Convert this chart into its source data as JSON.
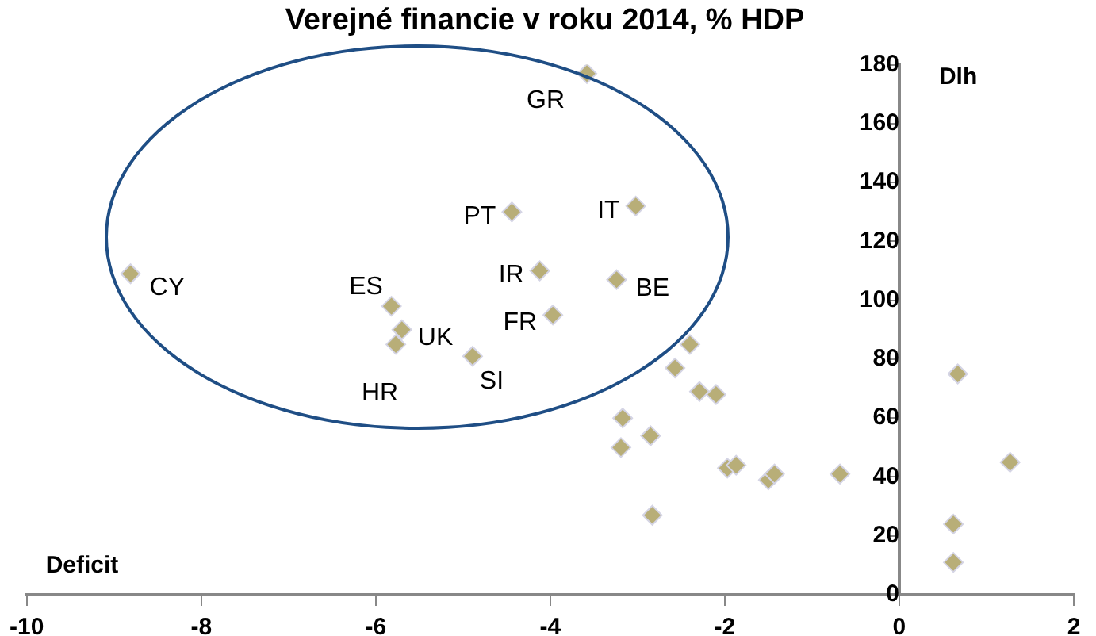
{
  "chart_data": {
    "type": "scatter",
    "title": "Verejné financie v roku 2014, % HDP",
    "xlabel": "Deficit",
    "ylabel": "Dlh",
    "series": [
      {
        "color": "#b8ae78",
        "x": [
          -3.58,
          -4.44,
          -3.02,
          -8.81,
          -5.82,
          -5.7,
          -5.77,
          -4.12,
          -3.24,
          -3.97,
          -4.89,
          -2.4,
          -2.57,
          -2.29,
          -2.1,
          -3.17,
          -2.85,
          -3.19,
          -1.97,
          -1.87,
          -1.5,
          -1.43,
          -0.68,
          -2.83,
          0.67,
          1.27,
          0.62,
          0.62
        ],
        "values": [
          177,
          130,
          132,
          109,
          98,
          90,
          85,
          110,
          107,
          95,
          81,
          85,
          77,
          69,
          68,
          60,
          54,
          50,
          43,
          44,
          39,
          41,
          41,
          27,
          75,
          45,
          24,
          11
        ]
      }
    ],
    "annotations": [
      {
        "text": "GR",
        "x": -3.58,
        "y": 177
      },
      {
        "text": "PT",
        "x": -4.44,
        "y": 130
      },
      {
        "text": "IT",
        "x": -3.02,
        "y": 132
      },
      {
        "text": "CY",
        "x": -8.81,
        "y": 109
      },
      {
        "text": "ES",
        "x": -5.82,
        "y": 98
      },
      {
        "text": "UK",
        "x": -5.7,
        "y": 90
      },
      {
        "text": "HR",
        "x": -5.77,
        "y": 85
      },
      {
        "text": "IR",
        "x": -4.12,
        "y": 110
      },
      {
        "text": "BE",
        "x": -3.24,
        "y": 107
      },
      {
        "text": "FR",
        "x": -3.97,
        "y": 95
      },
      {
        "text": "SI",
        "x": -4.89,
        "y": 81
      }
    ],
    "xlim": [
      -10,
      2
    ],
    "xticks": [
      -10,
      -8,
      -6,
      -4,
      -2,
      0,
      2
    ],
    "ylim": [
      0,
      180
    ],
    "yticks": [
      0,
      20,
      40,
      60,
      80,
      100,
      120,
      140,
      160,
      180
    ],
    "grid": false,
    "legend": false,
    "marker": "diamond"
  }
}
